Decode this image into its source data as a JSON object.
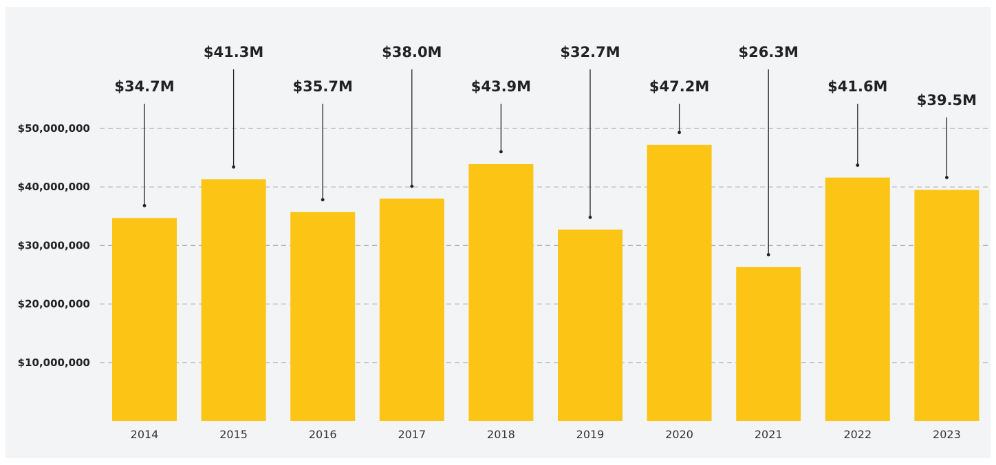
{
  "chart_data": {
    "type": "bar",
    "title": "",
    "xlabel": "",
    "ylabel": "",
    "categories": [
      "2014",
      "2015",
      "2016",
      "2017",
      "2018",
      "2019",
      "2020",
      "2021",
      "2022",
      "2023"
    ],
    "values": [
      34.7,
      41.3,
      35.7,
      38.0,
      43.9,
      32.7,
      47.2,
      26.3,
      41.6,
      39.5
    ],
    "value_unit": "millions of dollars",
    "data_labels": [
      "$34.7M",
      "$41.3M",
      "$35.7M",
      "$38.0M",
      "$43.9M",
      "$32.7M",
      "$47.2M",
      "$26.3M",
      "$41.6M",
      "$39.5M"
    ],
    "y_ticks": [
      10,
      20,
      30,
      40,
      50
    ],
    "y_tick_labels": [
      "$10,000,000",
      "$20,000,000",
      "$30,000,000",
      "$40,000,000",
      "$50,000,000"
    ],
    "ylim": [
      0,
      50
    ],
    "grid": true,
    "grid_style": "dashed",
    "legend": "none",
    "colors": {
      "bar": "#fcc414",
      "grid": "#b0b0b0",
      "panel": "#f3f4f6",
      "leader": "#222222"
    }
  }
}
